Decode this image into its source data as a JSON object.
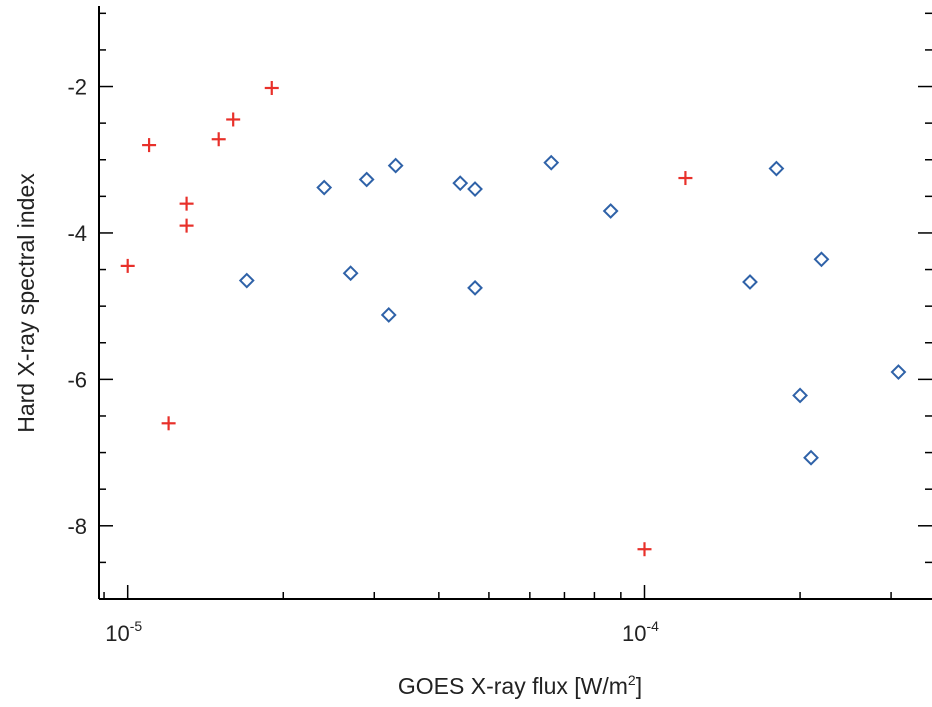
{
  "chart_data": {
    "type": "scatter",
    "xlabel": "GOES X-ray flux [W/m",
    "xlabel_sup": "2",
    "xlabel_end": "]",
    "ylabel": "Hard X-ray spectral index",
    "xscale": "log",
    "xlim": [
      8.8e-06,
      0.00036
    ],
    "ylim": [
      -9.0,
      -0.9
    ],
    "x_ticks": [
      {
        "value": 1e-05,
        "base": "10",
        "exp": "-5"
      },
      {
        "value": 0.0001,
        "base": "10",
        "exp": "-4"
      }
    ],
    "y_ticks": [
      {
        "value": -2,
        "label": "-2"
      },
      {
        "value": -4,
        "label": "-4"
      },
      {
        "value": -6,
        "label": "-6"
      },
      {
        "value": -8,
        "label": "-8"
      }
    ],
    "grid": false,
    "series": [
      {
        "marker": "plus",
        "color": "#e8302a",
        "points": [
          {
            "x": 1e-05,
            "y": -4.45
          },
          {
            "x": 1.1e-05,
            "y": -2.8
          },
          {
            "x": 1.2e-05,
            "y": -6.6
          },
          {
            "x": 1.3e-05,
            "y": -3.6
          },
          {
            "x": 1.3e-05,
            "y": -3.9
          },
          {
            "x": 1.5e-05,
            "y": -2.72
          },
          {
            "x": 1.6e-05,
            "y": -2.45
          },
          {
            "x": 1.9e-05,
            "y": -2.02
          },
          {
            "x": 0.0001,
            "y": -8.32
          },
          {
            "x": 0.00012,
            "y": -3.25
          }
        ]
      },
      {
        "marker": "diamond",
        "color": "#2f62a8",
        "points": [
          {
            "x": 1.7e-05,
            "y": -4.65
          },
          {
            "x": 2.4e-05,
            "y": -3.38
          },
          {
            "x": 2.7e-05,
            "y": -4.55
          },
          {
            "x": 2.9e-05,
            "y": -3.27
          },
          {
            "x": 3.2e-05,
            "y": -5.12
          },
          {
            "x": 3.3e-05,
            "y": -3.08
          },
          {
            "x": 4.4e-05,
            "y": -3.32
          },
          {
            "x": 4.7e-05,
            "y": -3.4
          },
          {
            "x": 4.7e-05,
            "y": -4.75
          },
          {
            "x": 6.6e-05,
            "y": -3.04
          },
          {
            "x": 8.6e-05,
            "y": -3.7
          },
          {
            "x": 0.00016,
            "y": -4.67
          },
          {
            "x": 0.00018,
            "y": -3.12
          },
          {
            "x": 0.0002,
            "y": -6.22
          },
          {
            "x": 0.00021,
            "y": -7.07
          },
          {
            "x": 0.00022,
            "y": -4.36
          },
          {
            "x": 0.00031,
            "y": -5.9
          }
        ]
      }
    ]
  }
}
